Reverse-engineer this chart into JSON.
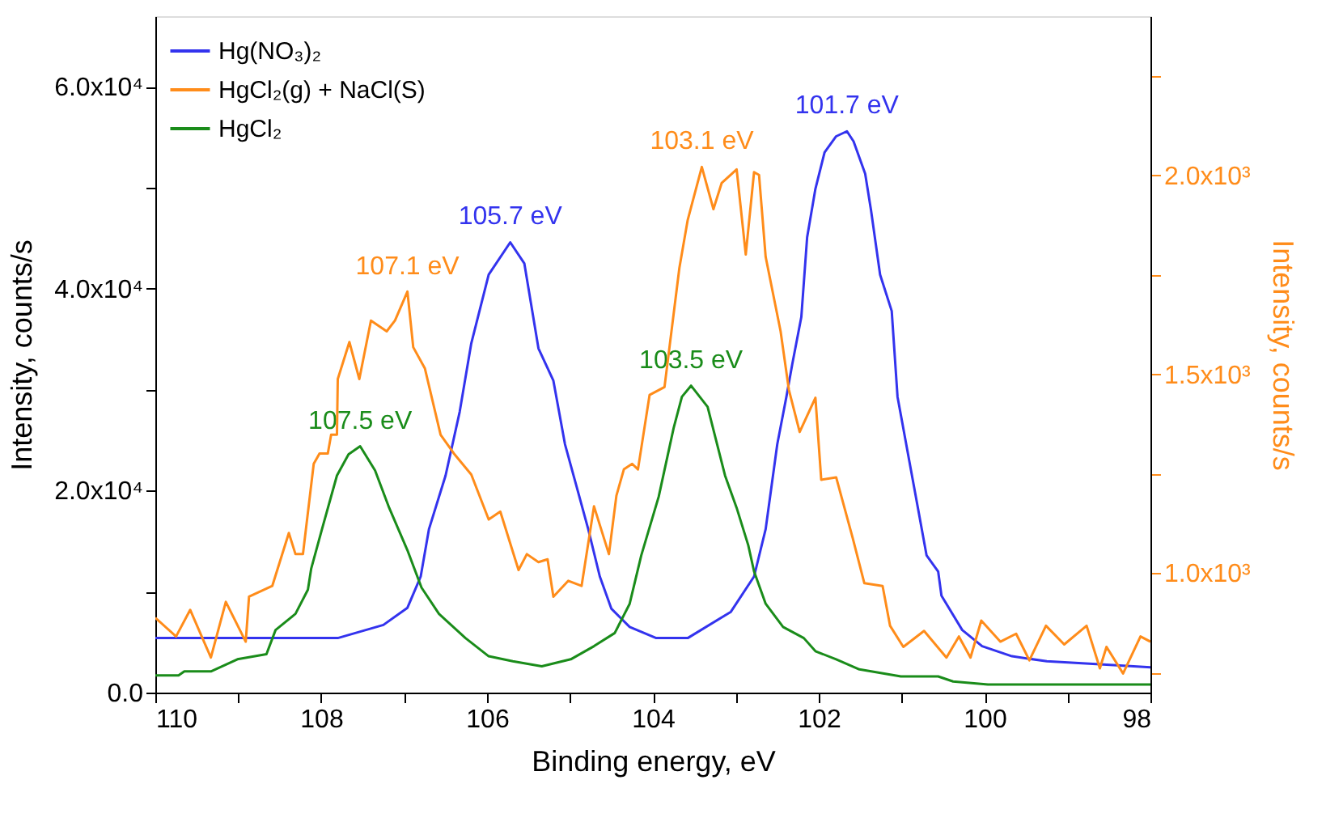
{
  "chart_data": {
    "type": "line",
    "xlabel": "Binding energy, eV",
    "ylabel": "Intensity, counts/s",
    "y2label": "Intensity, counts/s",
    "xlim": [
      110,
      98
    ],
    "xticks": [
      110,
      {
        "value": 109,
        "label": null
      },
      108,
      {
        "value": 107,
        "label": null
      },
      106,
      {
        "value": 105,
        "label": null
      },
      104,
      {
        "value": 103,
        "label": null
      },
      102,
      {
        "value": 101,
        "label": null
      },
      100,
      {
        "value": 99,
        "label": null
      },
      98
    ],
    "ylim": [
      0,
      67000
    ],
    "yticks": [
      {
        "value": 0,
        "label": "0.0"
      },
      {
        "value": 10000,
        "label": null
      },
      {
        "value": 20000,
        "label": "2.0x10⁴"
      },
      {
        "value": 30000,
        "label": null
      },
      {
        "value": 40000,
        "label": "4.0x10⁴"
      },
      {
        "value": 50000,
        "label": null
      },
      {
        "value": 60000,
        "label": "6.0x10⁴"
      }
    ],
    "y2lim": [
      700,
      2400
    ],
    "y2ticks": [
      {
        "value": 750,
        "label": null
      },
      {
        "value": 1000,
        "label": "1.0x10³"
      },
      {
        "value": 1250,
        "label": null
      },
      {
        "value": 1500,
        "label": "1.5x10³"
      },
      {
        "value": 1750,
        "label": null
      },
      {
        "value": 2000,
        "label": "2.0x10³"
      },
      {
        "value": 2250,
        "label": null
      }
    ],
    "grid": false,
    "legend": "top left",
    "marker": "none",
    "line_style": "solid",
    "series": [
      {
        "name": "Hg(NO₃)₂",
        "color": "#3333ee",
        "x": [
          110,
          107.8,
          107.25,
          106.96,
          106.8,
          106.7,
          106.5,
          106.33,
          106.19,
          105.98,
          105.72,
          105.55,
          105.38,
          105.2,
          105.06,
          104.92,
          104.78,
          104.64,
          104.5,
          104.28,
          103.96,
          103.58,
          103.06,
          102.78,
          102.64,
          102.5,
          102.39,
          102.32,
          102.21,
          102.14,
          102.04,
          101.93,
          101.79,
          101.66,
          101.58,
          101.44,
          101.37,
          101.26,
          101.12,
          101.05,
          100.84,
          100.7,
          100.56,
          100.52,
          100.27,
          100.03,
          99.67,
          99.25,
          98.61,
          98
        ],
        "values": [
          5400,
          5400,
          6700,
          8400,
          11500,
          16200,
          21500,
          27800,
          34600,
          41400,
          44600,
          42500,
          34100,
          30900,
          24600,
          20400,
          16200,
          11500,
          8300,
          6500,
          5400,
          5400,
          8000,
          11500,
          16200,
          24600,
          29300,
          32500,
          37200,
          45100,
          49900,
          53500,
          55100,
          55600,
          54600,
          51400,
          47800,
          41400,
          37800,
          29300,
          19900,
          13600,
          12000,
          9600,
          6200,
          4600,
          3600,
          3100,
          2800,
          2500
        ]
      },
      {
        "name": "HgCl₂(g) + NaCl(S)",
        "color": "#ff8c1a",
        "axis": "y2",
        "x": [
          110,
          109.75,
          109.58,
          109.33,
          109.15,
          108.91,
          108.87,
          108.59,
          108.39,
          108.31,
          108.22,
          108.09,
          108.02,
          107.92,
          107.88,
          107.81,
          107.8,
          107.66,
          107.54,
          107.4,
          107.21,
          107.11,
          106.96,
          106.89,
          106.75,
          106.56,
          106.4,
          106.19,
          105.98,
          105.84,
          105.62,
          105.52,
          105.38,
          105.27,
          105.2,
          105.02,
          104.86,
          104.71,
          104.53,
          104.44,
          104.35,
          104.25,
          104.18,
          104.04,
          103.86,
          103.68,
          103.58,
          103.41,
          103.27,
          103.17,
          102.99,
          102.88,
          102.78,
          102.72,
          102.64,
          102.46,
          102.36,
          102.23,
          102.04,
          101.97,
          101.79,
          101.59,
          101.45,
          101.23,
          101.14,
          100.98,
          100.73,
          100.46,
          100.31,
          100.17,
          100.04,
          99.81,
          99.62,
          99.46,
          99.26,
          99.04,
          98.77,
          98.61,
          98.53,
          98.33,
          98.12,
          98
        ],
        "values": [
          888,
          841,
          908,
          788,
          928,
          828,
          941,
          968,
          1101,
          1048,
          1048,
          1275,
          1301,
          1301,
          1348,
          1348,
          1488,
          1581,
          1488,
          1635,
          1608,
          1635,
          1708,
          1568,
          1515,
          1348,
          1301,
          1248,
          1135,
          1155,
          1008,
          1048,
          1028,
          1035,
          941,
          981,
          968,
          1168,
          1048,
          1195,
          1261,
          1275,
          1261,
          1448,
          1468,
          1768,
          1888,
          2021,
          1915,
          1981,
          2015,
          1801,
          2008,
          2001,
          1795,
          1608,
          1461,
          1355,
          1441,
          1235,
          1241,
          1088,
          975,
          968,
          868,
          815,
          855,
          788,
          841,
          788,
          881,
          828,
          848,
          781,
          868,
          821,
          868,
          761,
          815,
          748,
          841,
          828
        ]
      },
      {
        "name": "HgCl₂",
        "color": "#1a8c1a",
        "x": [
          110,
          109.72,
          109.65,
          109.33,
          109.01,
          108.66,
          108.55,
          108.31,
          108.16,
          108.12,
          107.99,
          107.81,
          107.67,
          107.53,
          107.35,
          107.18,
          106.96,
          106.79,
          106.58,
          106.26,
          105.98,
          105.69,
          105.34,
          104.99,
          104.71,
          104.46,
          104.28,
          104.14,
          103.93,
          103.75,
          103.65,
          103.54,
          103.34,
          103.13,
          102.99,
          102.85,
          102.78,
          102.64,
          102.43,
          102.18,
          102.04,
          101.79,
          101.51,
          101.01,
          100.56,
          100.38,
          99.96,
          98
        ],
        "values": [
          1700,
          1700,
          2100,
          2100,
          3300,
          3800,
          6200,
          7800,
          10200,
          12300,
          16200,
          21500,
          23600,
          24400,
          22000,
          18300,
          14100,
          10400,
          7800,
          5400,
          3600,
          3100,
          2600,
          3300,
          4600,
          5900,
          8800,
          13600,
          19400,
          26200,
          29300,
          30400,
          28300,
          21500,
          18300,
          14600,
          12000,
          8800,
          6500,
          5400,
          4100,
          3300,
          2300,
          1600,
          1600,
          1100,
          800,
          800
        ]
      }
    ],
    "annotations": [
      {
        "text": "101.7 eV",
        "x": 101.66,
        "y": 55600
      },
      {
        "text": "105.7 eV",
        "x": 105.72,
        "y": 44600
      },
      {
        "text": "107.5 eV",
        "x": 107.53,
        "y": 24400
      },
      {
        "text": "103.5 eV",
        "x": 103.54,
        "y": 30400
      },
      {
        "text": "107.1 eV",
        "x": 106.96,
        "y": 39700
      },
      {
        "text": "103.1 eV",
        "x": 103.41,
        "y": 52100
      }
    ]
  }
}
